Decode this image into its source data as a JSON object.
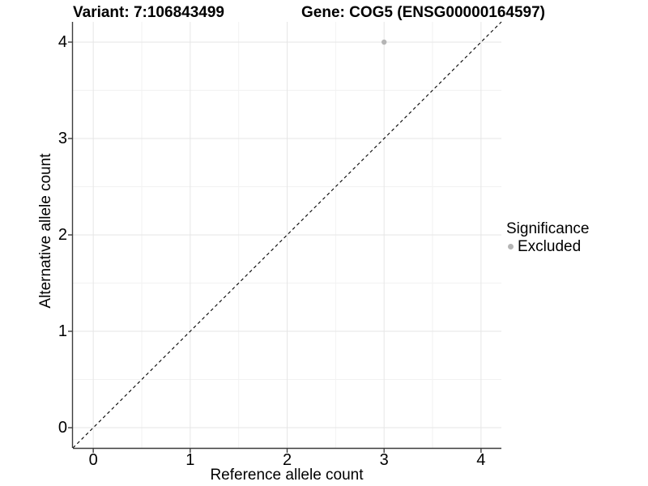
{
  "figure": {
    "background": "#ffffff"
  },
  "chart_data": {
    "type": "scatter",
    "titles": {
      "left": "Variant: 7:106843499",
      "right": "Gene: COG5 (ENSG00000164597)"
    },
    "xlabel": "Reference allele count",
    "ylabel": "Alternative allele count",
    "xlim": [
      -0.21,
      4.21
    ],
    "ylim": [
      -0.21,
      4.21
    ],
    "xticks": [
      0,
      1,
      2,
      3,
      4
    ],
    "yticks": [
      0,
      1,
      2,
      3,
      4
    ],
    "grid": "major+minor",
    "legend": {
      "position": "right",
      "title": "Significance",
      "items": [
        {
          "label": "Excluded",
          "color": "#b5b5b5"
        }
      ]
    },
    "series": [
      {
        "name": "Excluded",
        "color": "#b5b5b5",
        "point_radius": 3.2,
        "points": [
          [
            3,
            4
          ]
        ]
      }
    ],
    "reference_line": {
      "kind": "identity",
      "style": "dashed",
      "color": "#000000"
    },
    "colors": {
      "grid_major": "#e6e6e6",
      "grid_minor": "#f2f2f2",
      "axis_line": "#3c3c3c",
      "text": "#000000"
    }
  }
}
